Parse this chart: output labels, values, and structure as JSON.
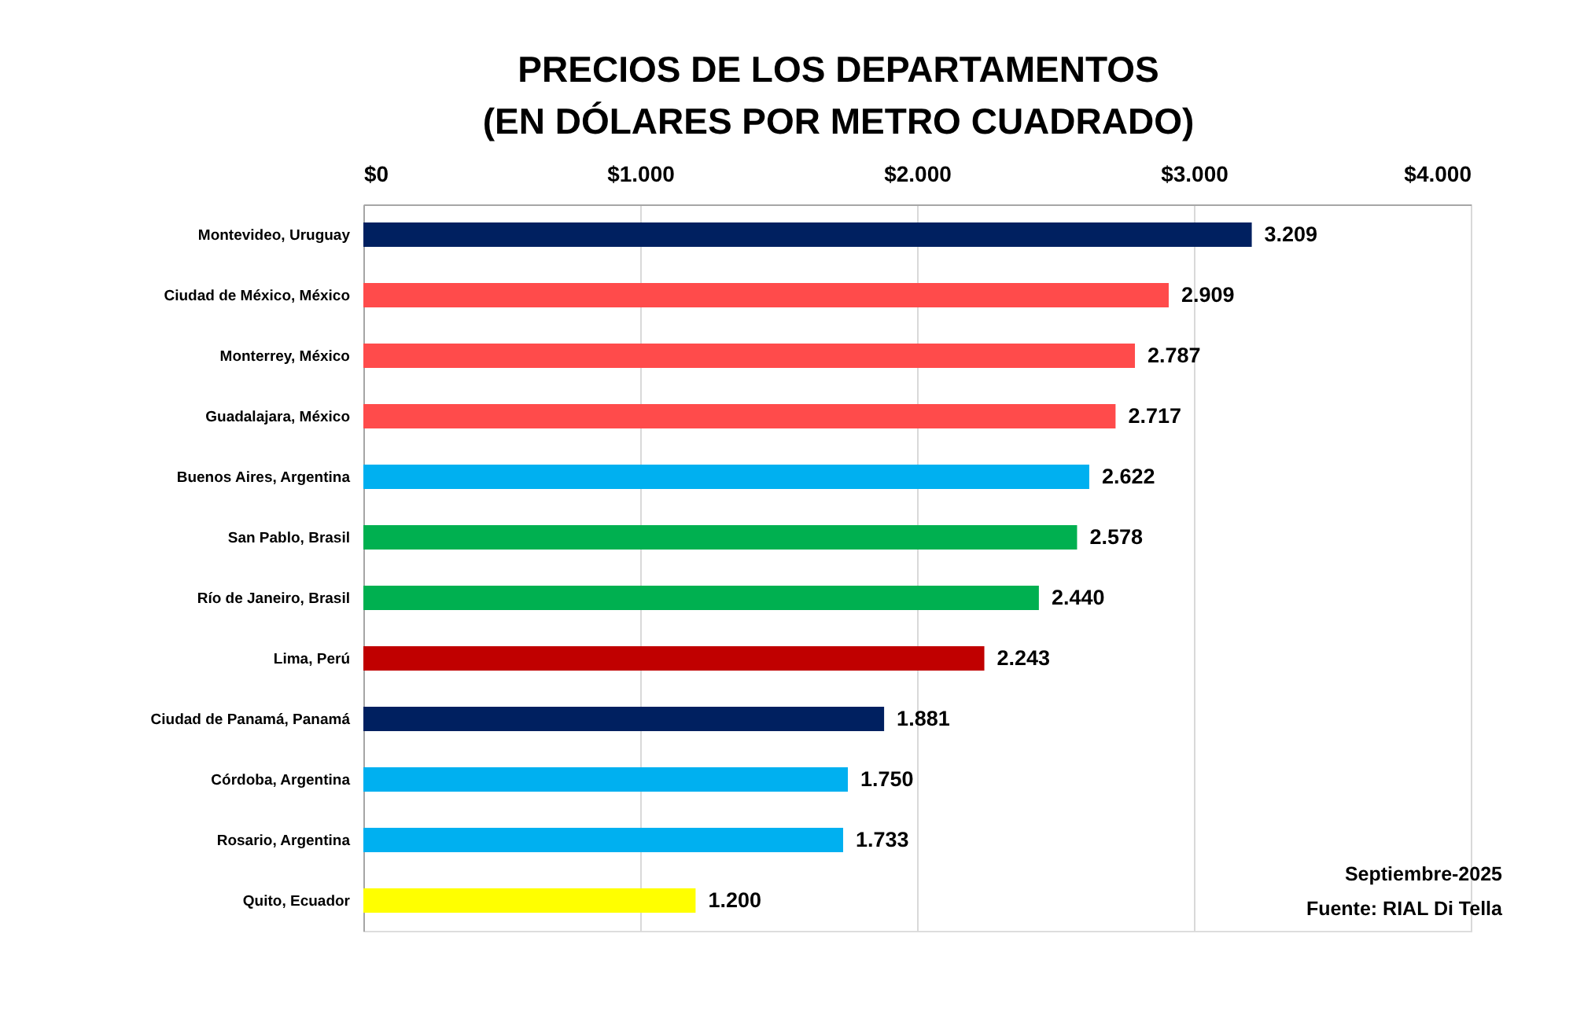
{
  "chart_data": {
    "type": "bar",
    "orientation": "horizontal",
    "title": "PRECIOS DE LOS DEPARTAMENTOS\n(EN DÓLARES POR METRO CUADRADO)",
    "categories": [
      "Montevideo, Uruguay",
      "Ciudad de México, México",
      "Monterrey, México",
      "Guadalajara, México",
      "Buenos Aires, Argentina",
      "San Pablo, Brasil",
      "Río de Janeiro, Brasil",
      "Lima, Perú",
      "Ciudad de Panamá, Panamá",
      "Córdoba, Argentina",
      "Rosario, Argentina",
      "Quito, Ecuador"
    ],
    "values": [
      3209,
      2909,
      2787,
      2717,
      2622,
      2578,
      2440,
      2243,
      1881,
      1750,
      1733,
      1200
    ],
    "colors": [
      "#002060",
      "#ff4b4b",
      "#ff4b4b",
      "#ff4b4b",
      "#00b0f0",
      "#00b050",
      "#00b050",
      "#c00000",
      "#002060",
      "#00b0f0",
      "#00b0f0",
      "#ffff00"
    ],
    "value_labels": [
      "3.209",
      "2.909",
      "2.787",
      "2.717",
      "2.622",
      "2.578",
      "2.440",
      "2.243",
      "1.881",
      "1.750",
      "1.733",
      "1.200"
    ],
    "xlim": [
      0,
      4000
    ],
    "xticks": [
      {
        "value": 0,
        "label": "$0"
      },
      {
        "value": 1000,
        "label": "$1.000"
      },
      {
        "value": 2000,
        "label": "$2.000"
      },
      {
        "value": 3000,
        "label": "$3.000"
      },
      {
        "value": 4000,
        "label": "$4.000"
      }
    ],
    "grid": "x",
    "annotations": [
      "Septiembre-2025",
      "Fuente: RIAL Di Tella"
    ]
  }
}
